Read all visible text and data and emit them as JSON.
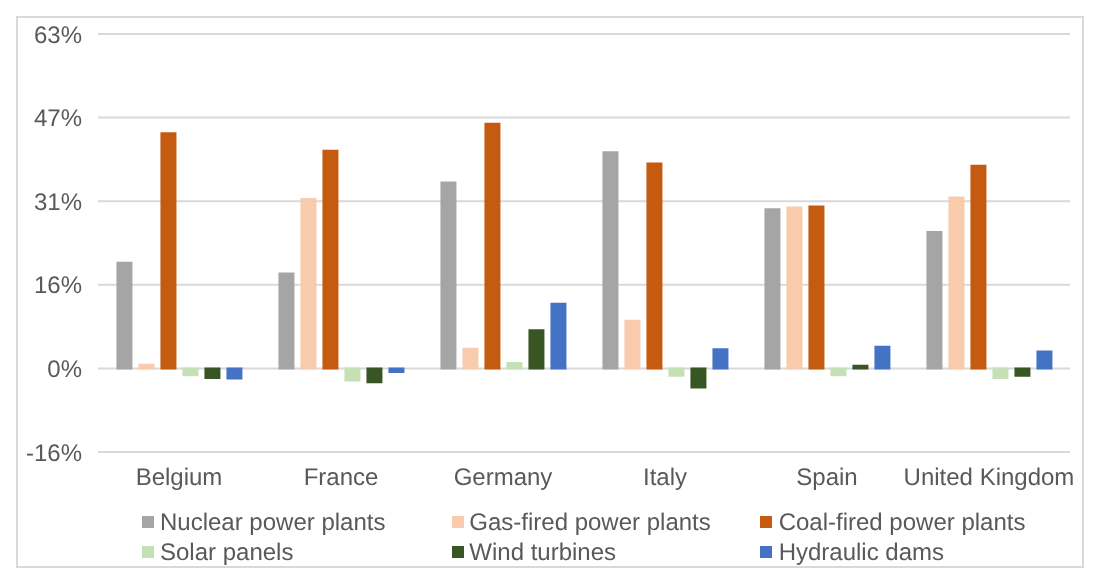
{
  "chart_data": {
    "type": "bar",
    "categories": [
      "Belgium",
      "France",
      "Germany",
      "Italy",
      "Spain",
      "United Kingdom"
    ],
    "series": [
      {
        "name": "Nuclear power plants",
        "color": "#a5a5a5",
        "values": [
          19.9,
          17.9,
          35.0,
          40.7,
          30.0,
          25.7
        ]
      },
      {
        "name": "Gas-fired power plants",
        "color": "#f8cbad",
        "values": [
          0.7,
          31.9,
          3.7,
          9.0,
          30.3,
          32.2
        ]
      },
      {
        "name": "Coal-fired power plants",
        "color": "#c55a11",
        "values": [
          44.3,
          41.0,
          46.1,
          38.6,
          30.5,
          38.2
        ]
      },
      {
        "name": "Solar panels",
        "color": "#c5e0b4",
        "values": [
          -1.3,
          -2.3,
          1.0,
          -1.4,
          -1.3,
          -1.8
        ]
      },
      {
        "name": "Wind turbines",
        "color": "#375623",
        "values": [
          -1.8,
          -2.6,
          7.2,
          -3.6,
          0.5,
          -1.4
        ]
      },
      {
        "name": "Hydraulic dams",
        "color": "#4472c4",
        "values": [
          -1.9,
          -0.7,
          12.2,
          3.6,
          4.1,
          3.2
        ]
      }
    ],
    "ylim": [
      -15.75,
      63
    ],
    "yticks": [
      {
        "value": -15.75,
        "label": "-16%"
      },
      {
        "value": 0,
        "label": "0%"
      },
      {
        "value": 15.75,
        "label": "16%"
      },
      {
        "value": 31.5,
        "label": "31%"
      },
      {
        "value": 47.25,
        "label": "47%"
      },
      {
        "value": 63,
        "label": "63%"
      }
    ],
    "grid": "y",
    "legend": "bottom"
  }
}
